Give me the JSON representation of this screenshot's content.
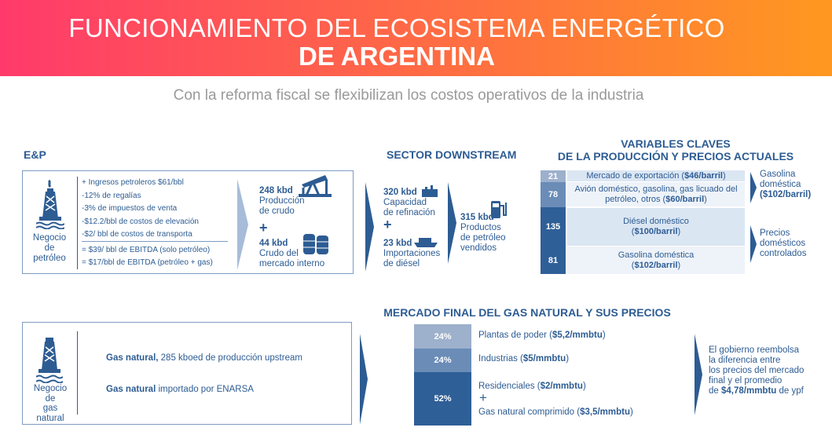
{
  "header": {
    "title_line1": "FUNCIONAMIENTO DEL ECOSISTEMA ENERGÉTICO",
    "title_line2": "DE ARGENTINA",
    "gradient": [
      "#ff3a6b",
      "#ff9820"
    ]
  },
  "subtitle": "Con la reforma fiscal se flexibilizan los costos operativos de la industria",
  "ep": {
    "title": "E&P",
    "business": [
      "Negocio",
      "de",
      "petróleo"
    ],
    "items": [
      "+ Ingresos petroleros $61/bbl",
      "-12% de regalías",
      "-3% de impuestos de venta",
      "-$12.2/bbl de costos de elevación",
      "-$2/ bbl de costos de transporta"
    ],
    "results": [
      "= $39/ bbl de EBITDA (solo petróleo)",
      "= $17/bbl de EBITDA (petróleo + gas)"
    ],
    "production": {
      "value": "248 kbd",
      "label1": "Producción",
      "label2": "de crudo"
    },
    "plus": "+",
    "domestic": {
      "value": "44 kbd",
      "label1": "Crudo del",
      "label2": "mercado interno"
    }
  },
  "downstream": {
    "title": "SECTOR DOWNSTREAM",
    "refining": {
      "value": "320 kbd",
      "label1": "Capacidad",
      "label2": "de refinación"
    },
    "plus": "+",
    "imports": {
      "value": "23 kbd",
      "label1": "Importaciones",
      "label2": "de diésel"
    },
    "sold": {
      "value": "315 kbd",
      "label1": "Productos",
      "label2": "de petróleo",
      "label3": "vendidos"
    }
  },
  "variables": {
    "title1": "VARIABLES CLAVES",
    "title2": "DE LA PRODUCCIÓN Y PRECIOS ACTUALES",
    "rows": [
      {
        "value": "21",
        "text": "Mercado de exportación (",
        "price": "$46/barril",
        "end": ")"
      },
      {
        "value": "78",
        "text": "Avión doméstico, gasolina, gas licuado del petróleo, otros (",
        "price": "$60/barril",
        "end": ")"
      },
      {
        "value": "135",
        "text": "Diésel doméstico (",
        "price": "$100/barril",
        "end": ")"
      },
      {
        "value": "81",
        "text": "Gasolina doméstica (",
        "price": "$102/barril",
        "end": ")"
      }
    ],
    "note1": {
      "l1": "Gasolina",
      "l2": "doméstica",
      "l3": "($102/barril)"
    },
    "note2": {
      "l1": "Precios",
      "l2": "domésticos",
      "l3": "controlados"
    }
  },
  "gas": {
    "business": [
      "Negocio",
      "de",
      "gas",
      "natural"
    ],
    "line1_bold": "Gas natural,",
    "line1": " 285 kboed de producción upstream",
    "line2_bold": "Gas natural",
    "line2": " importado por ENARSA"
  },
  "gas_market": {
    "title": "MERCADO FINAL DEL GAS NATURAL Y SUS PRECIOS",
    "rows": [
      {
        "value": "24%",
        "text": "Plantas de poder (",
        "price": "$5,2/mmbtu",
        "end": ")"
      },
      {
        "value": "24%",
        "text": "Industrias (",
        "price": "$5/mmbtu",
        "end": ")"
      },
      {
        "value": "52%",
        "text": "Residenciales (",
        "price": "$2/mmbtu",
        "end": ")"
      }
    ],
    "plus": "+",
    "extra": {
      "text": "Gas natural comprimido (",
      "price": "$3,5/mmbtu",
      "end": ")"
    },
    "note": [
      "El gobierno reembolsa",
      "la diferencia entre",
      "los precios del mercado",
      "final y el promedio"
    ],
    "note_last": {
      "pre": "de ",
      "bold": "$4,78/mmbtu",
      "post": " de ypf"
    }
  },
  "colors": {
    "navy": "#2d5c93",
    "mid": "#6a8cb7",
    "light": "#9db0cc",
    "pale": "#dbe6f3"
  }
}
